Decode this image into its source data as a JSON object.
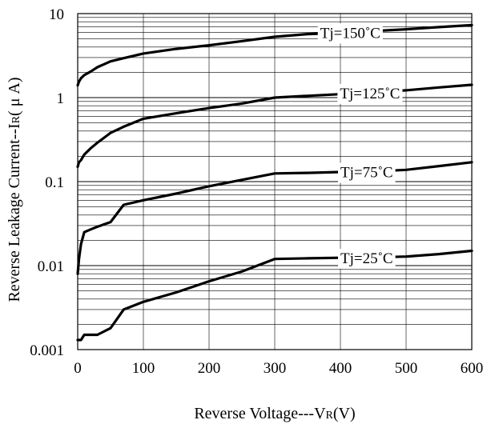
{
  "chart_data": {
    "type": "line",
    "title": "",
    "xlabel_parts": {
      "main": "Reverse Voltage---V",
      "sub": "R",
      "tail": "(V)"
    },
    "ylabel_parts": {
      "main": "Reverse Leakage Current--I",
      "sub": "R",
      "tail": "( μ A)"
    },
    "x_ticks": [
      "0",
      "100",
      "200",
      "300",
      "400",
      "500",
      "600"
    ],
    "x_tick_values": [
      0,
      100,
      200,
      300,
      400,
      500,
      600
    ],
    "y_ticks": [
      "0.001",
      "0.01",
      "0.1",
      "1",
      "10"
    ],
    "y_tick_values": [
      0.001,
      0.01,
      0.1,
      1,
      10
    ],
    "xlim": [
      0,
      600
    ],
    "ylim": [
      0.001,
      10
    ],
    "y_scale": "log",
    "grid": true,
    "series": [
      {
        "label": "Tj=150˚C",
        "x": [
          0,
          2,
          5,
          10,
          20,
          30,
          50,
          70,
          100,
          150,
          200,
          250,
          300,
          350,
          400,
          450,
          500,
          550,
          600
        ],
        "y": [
          1.4,
          1.55,
          1.7,
          1.85,
          2.05,
          2.3,
          2.7,
          2.95,
          3.35,
          3.8,
          4.2,
          4.7,
          5.3,
          5.7,
          5.9,
          6.2,
          6.5,
          6.9,
          7.3
        ],
        "label_at_x": 415
      },
      {
        "label": "Tj=125˚C",
        "x": [
          0,
          2,
          5,
          10,
          20,
          30,
          50,
          70,
          100,
          150,
          200,
          250,
          300,
          350,
          400,
          450,
          500,
          550,
          600
        ],
        "y": [
          0.15,
          0.17,
          0.18,
          0.21,
          0.25,
          0.29,
          0.38,
          0.45,
          0.56,
          0.65,
          0.75,
          0.85,
          1.0,
          1.05,
          1.1,
          1.15,
          1.22,
          1.32,
          1.42
        ],
        "label_at_x": 445
      },
      {
        "label": "Tj=75˚C",
        "x": [
          0,
          2,
          5,
          10,
          20,
          30,
          50,
          70,
          100,
          150,
          200,
          250,
          300,
          350,
          400,
          450,
          500,
          550,
          600
        ],
        "y": [
          0.008,
          0.012,
          0.018,
          0.025,
          0.027,
          0.029,
          0.033,
          0.053,
          0.06,
          0.072,
          0.088,
          0.105,
          0.125,
          0.127,
          0.13,
          0.132,
          0.138,
          0.153,
          0.17
        ],
        "label_at_x": 440
      },
      {
        "label": "Tj=25˚C",
        "x": [
          0,
          5,
          10,
          20,
          30,
          50,
          70,
          100,
          150,
          200,
          250,
          300,
          350,
          400,
          450,
          500,
          550,
          600
        ],
        "y": [
          0.0013,
          0.0013,
          0.0015,
          0.0015,
          0.0015,
          0.0018,
          0.003,
          0.0037,
          0.0048,
          0.0065,
          0.0085,
          0.012,
          0.0122,
          0.0124,
          0.0125,
          0.0128,
          0.0137,
          0.015
        ],
        "label_at_x": 440
      }
    ]
  }
}
